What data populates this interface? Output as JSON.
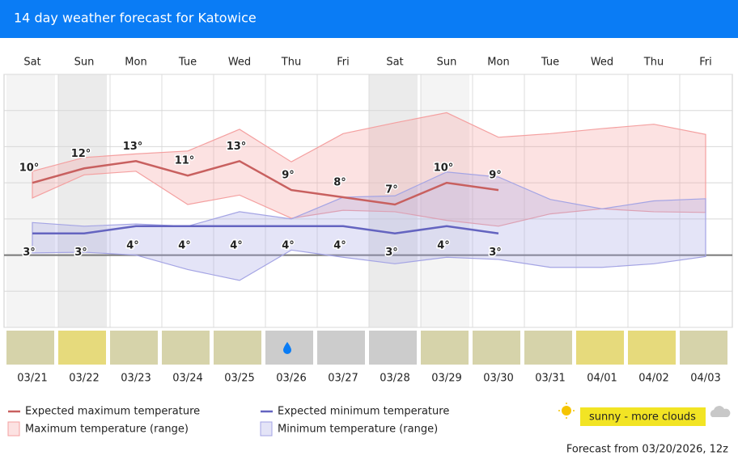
{
  "header": {
    "title": "14 day weather forecast for Katowice"
  },
  "chart_data": {
    "type": "line",
    "categories": [
      "Sat",
      "Sun",
      "Mon",
      "Tue",
      "Wed",
      "Thu",
      "Fri",
      "Sat",
      "Sun",
      "Mon",
      "Tue",
      "Wed",
      "Thu",
      "Fri"
    ],
    "dates": [
      "03/21",
      "03/22",
      "03/23",
      "03/24",
      "03/25",
      "03/26",
      "03/27",
      "03/28",
      "03/29",
      "03/30",
      "03/31",
      "04/01",
      "04/02",
      "04/03"
    ],
    "ylim": [
      -10,
      25
    ],
    "yticks": [
      -10,
      -5,
      0,
      5,
      10,
      15,
      20,
      25
    ],
    "grid": true,
    "series": [
      {
        "name": "Expected maximum temperature",
        "color": "#c8605f",
        "values": [
          10,
          12,
          13,
          11,
          13,
          9,
          8,
          7,
          10,
          9,
          null,
          null,
          null,
          null
        ],
        "value_labels": [
          "10°",
          "12°",
          "13°",
          "11°",
          "13°",
          "9°",
          "8°",
          "7°",
          "10°",
          "9°",
          null,
          null,
          null,
          null
        ]
      },
      {
        "name": "Expected minimum temperature",
        "color": "#6464c0",
        "values": [
          3,
          3,
          4,
          4,
          4,
          4,
          4,
          3,
          4,
          3,
          null,
          null,
          null,
          null
        ],
        "value_labels": [
          "3°",
          "3°",
          "4°",
          "4°",
          "4°",
          "4°",
          "4°",
          "3°",
          "4°",
          "3°",
          null,
          null,
          null,
          null
        ]
      }
    ],
    "ranges": [
      {
        "name": "Maximum temperature (range)",
        "color": "#f4a0a0",
        "high": [
          11.6,
          13.5,
          14,
          14.4,
          17.4,
          12.9,
          16.8,
          18.3,
          19.7,
          16.3,
          16.8,
          17.5,
          18.1,
          16.7
        ],
        "low": [
          7.9,
          11.1,
          11.6,
          7.0,
          8.3,
          5.1,
          6.2,
          6.0,
          4.8,
          4.0,
          5.7,
          6.4,
          6.0,
          5.9
        ]
      },
      {
        "name": "Minimum temperature (range)",
        "color": "#a4a4e4",
        "high": [
          4.5,
          4.0,
          4.3,
          4.0,
          6.0,
          5.0,
          8.0,
          8.2,
          11.5,
          10.8,
          7.7,
          6.4,
          7.5,
          7.8
        ],
        "low": [
          0.3,
          0.4,
          0.0,
          -2.0,
          -3.5,
          0.7,
          -0.3,
          -1.2,
          -0.3,
          -0.6,
          -1.7,
          -1.7,
          -1.2,
          -0.2
        ]
      }
    ],
    "sky_colors": [
      "#d6d3aa",
      "#e6da7c",
      "#d6d3aa",
      "#d6d3aa",
      "#d6d3aa",
      "#cccccc",
      "#cccccc",
      "#cccccc",
      "#d6d3aa",
      "#d6d3aa",
      "#d6d3aa",
      "#e6da7c",
      "#e6da7c",
      "#d6d3aa"
    ],
    "sky_legend": {
      "label": "sunny - more clouds",
      "color": "#f2e424"
    }
  },
  "footer": "Forecast from 03/20/2026, 12z"
}
